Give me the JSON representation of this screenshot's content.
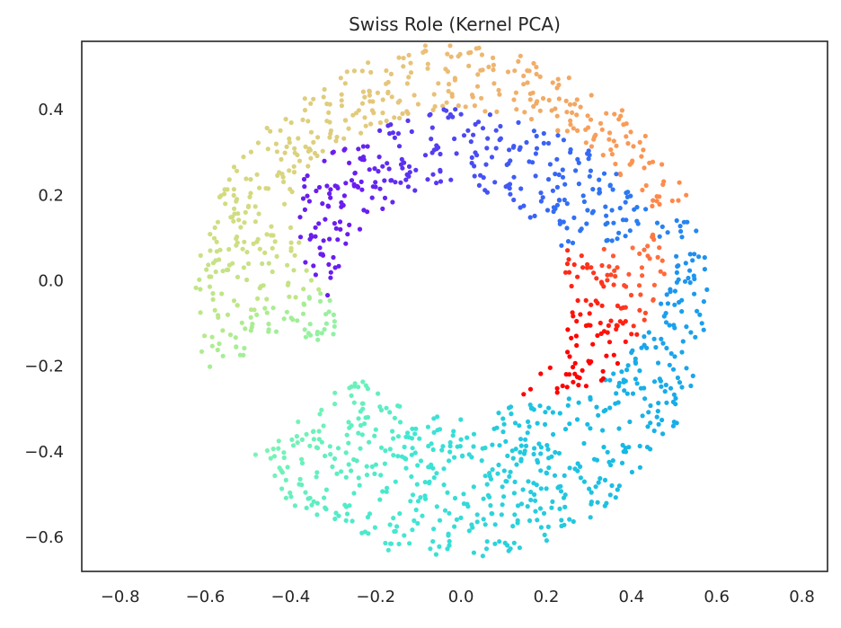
{
  "chart_data": {
    "type": "scatter",
    "title": "Swiss Role (Kernel PCA)",
    "xlabel": "",
    "ylabel": "",
    "xlim": [
      -0.89,
      0.86
    ],
    "ylim": [
      -0.68,
      0.56
    ],
    "grid": false,
    "legend": "none",
    "xticks": [
      -0.8,
      -0.6,
      -0.4,
      -0.2,
      0.0,
      0.2,
      0.4,
      0.6,
      0.8
    ],
    "yticks": [
      -0.6,
      -0.4,
      -0.2,
      0.0,
      0.2,
      0.4
    ],
    "xtick_labels": [
      "−0.8",
      "−0.6",
      "−0.4",
      "−0.2",
      "0.0",
      "0.2",
      "0.4",
      "0.6",
      "0.8"
    ],
    "ytick_labels": [
      "−0.6",
      "−0.4",
      "−0.2",
      "0.0",
      "0.2",
      "0.4"
    ],
    "point_count": 1500,
    "distribution": {
      "shape": "annulus",
      "center": [
        -0.02,
        -0.05
      ],
      "inner_radius": 0.27,
      "outer_radius": 0.6,
      "gap_start_deg": 195,
      "gap_end_deg": 218,
      "seed": 7
    },
    "colormap": {
      "name": "rainbow",
      "stops": [
        "#ff0000",
        "#ff5a33",
        "#ff8c4a",
        "#e8c27a",
        "#d2dc80",
        "#b6ea8a",
        "#7ef5b0",
        "#3ee6d3",
        "#16b9e4",
        "#1e8ef0",
        "#3c5ff5",
        "#6a1df0"
      ],
      "path": [
        {
          "angle_deg": -18,
          "radius": 0.31,
          "t": 0.0
        },
        {
          "angle_deg": 0,
          "radius": 0.36,
          "t": 0.04
        },
        {
          "angle_deg": 10,
          "radius": 0.47,
          "t": 0.12
        },
        {
          "angle_deg": 28,
          "radius": 0.55,
          "t": 0.18
        },
        {
          "angle_deg": 55,
          "radius": 0.54,
          "t": 0.22
        },
        {
          "angle_deg": 90,
          "radius": 0.56,
          "t": 0.26
        },
        {
          "angle_deg": 115,
          "radius": 0.56,
          "t": 0.3
        },
        {
          "angle_deg": 140,
          "radius": 0.58,
          "t": 0.33
        },
        {
          "angle_deg": 165,
          "radius": 0.58,
          "t": 0.38
        },
        {
          "angle_deg": 185,
          "radius": 0.58,
          "t": 0.45
        },
        {
          "angle_deg": 215,
          "radius": 0.5,
          "t": 0.55
        },
        {
          "angle_deg": 250,
          "radius": 0.48,
          "t": 0.62
        },
        {
          "angle_deg": 285,
          "radius": 0.48,
          "t": 0.68
        },
        {
          "angle_deg": 315,
          "radius": 0.47,
          "t": 0.72
        },
        {
          "angle_deg": 340,
          "radius": 0.54,
          "t": 0.76
        },
        {
          "angle_deg": 360,
          "radius": 0.57,
          "t": 0.79
        },
        {
          "angle_deg": 380,
          "radius": 0.52,
          "t": 0.84
        },
        {
          "angle_deg": 410,
          "radius": 0.42,
          "t": 0.89
        },
        {
          "angle_deg": 445,
          "radius": 0.37,
          "t": 0.94
        },
        {
          "angle_deg": 490,
          "radius": 0.36,
          "t": 1.0
        }
      ]
    }
  }
}
